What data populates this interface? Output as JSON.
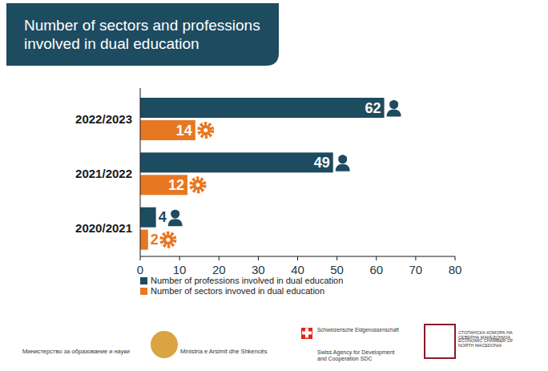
{
  "chart_data": {
    "type": "bar",
    "orientation": "horizontal",
    "title": "Number of sectors and professions involved in dual education",
    "categories": [
      "2022/2023",
      "2021/2022",
      "2020/2021"
    ],
    "series": [
      {
        "name": "Number of professions involved in dual education",
        "color": "#1d4b60",
        "values": [
          62,
          49,
          4
        ]
      },
      {
        "name": "Number of sectors invoved in dual education",
        "color": "#e87722",
        "values": [
          14,
          12,
          2
        ]
      }
    ],
    "xlim": [
      0,
      80
    ],
    "xticks": [
      0,
      10,
      20,
      30,
      40,
      50,
      60,
      70,
      80
    ],
    "grid": false,
    "legend": "bottom",
    "data_labels": true,
    "annotations": [
      "Министерство за образование и науки",
      "Ministria e Arsimit dhe Shkencës",
      "Schweizerische Eidgenossenschaft",
      "Swiss Agency for Development and Cooperation SDC",
      "СТОПАНСКА КОМОРА НА СЕВЕРНА МАКЕДОНИЈА",
      "ECONOMIC CHAMBER OF NORTH MACEDONIA"
    ]
  }
}
